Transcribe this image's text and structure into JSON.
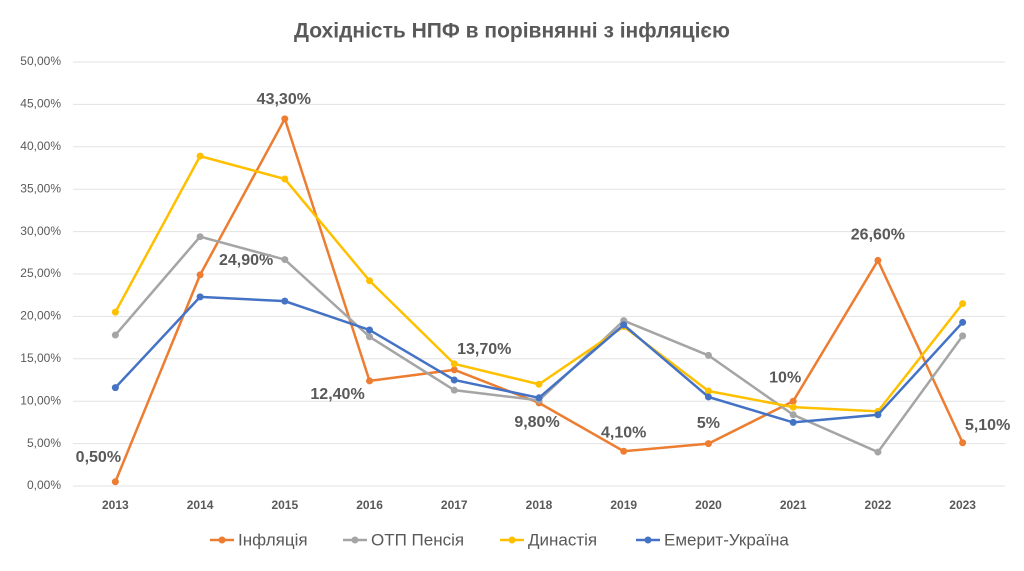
{
  "chart_data": {
    "type": "line",
    "title": "Дохідність НПФ в порівнянні з інфляцією",
    "categories": [
      "2013",
      "2014",
      "2015",
      "2016",
      "2017",
      "2018",
      "2019",
      "2020",
      "2021",
      "2022",
      "2023"
    ],
    "series": [
      {
        "name": "Інфляція",
        "color": "#ed7d31",
        "values": [
          0.5,
          24.9,
          43.3,
          12.4,
          13.7,
          9.8,
          4.1,
          5,
          10,
          26.6,
          5.1
        ],
        "value_labels": [
          "0,50%",
          "24,90%",
          "43,30%",
          "12,40%",
          "13,70%",
          "9,80%",
          "4,10%",
          "5%",
          "10%",
          "26,60%",
          "5,10%"
        ]
      },
      {
        "name": "ОТП Пенсія",
        "color": "#a5a5a5",
        "values": [
          17.8,
          29.4,
          26.7,
          17.6,
          11.3,
          10.1,
          19.5,
          15.4,
          8.4,
          4.0,
          17.7
        ]
      },
      {
        "name": "Династія",
        "color": "#ffc000",
        "values": [
          20.5,
          38.9,
          36.2,
          24.2,
          14.4,
          12.0,
          18.8,
          11.2,
          9.3,
          8.8,
          21.5
        ]
      },
      {
        "name": "Емерит-Україна",
        "color": "#4472c4",
        "values": [
          11.6,
          22.3,
          21.8,
          18.4,
          12.5,
          10.4,
          19.0,
          10.5,
          7.5,
          8.4,
          19.3
        ]
      }
    ],
    "ylim": [
      0,
      50
    ],
    "yticks": [
      {
        "value": 0,
        "label": "0,00%"
      },
      {
        "value": 5,
        "label": "5,00%"
      },
      {
        "value": 10,
        "label": "10,00%"
      },
      {
        "value": 15,
        "label": "15,00%"
      },
      {
        "value": 20,
        "label": "20,00%"
      },
      {
        "value": 25,
        "label": "25,00%"
      },
      {
        "value": 30,
        "label": "30,00%"
      },
      {
        "value": 35,
        "label": "35,00%"
      },
      {
        "value": 40,
        "label": "40,00%"
      },
      {
        "value": 45,
        "label": "45,00%"
      },
      {
        "value": 50,
        "label": "50,00%"
      }
    ],
    "grid": true,
    "legend": "bottom"
  }
}
